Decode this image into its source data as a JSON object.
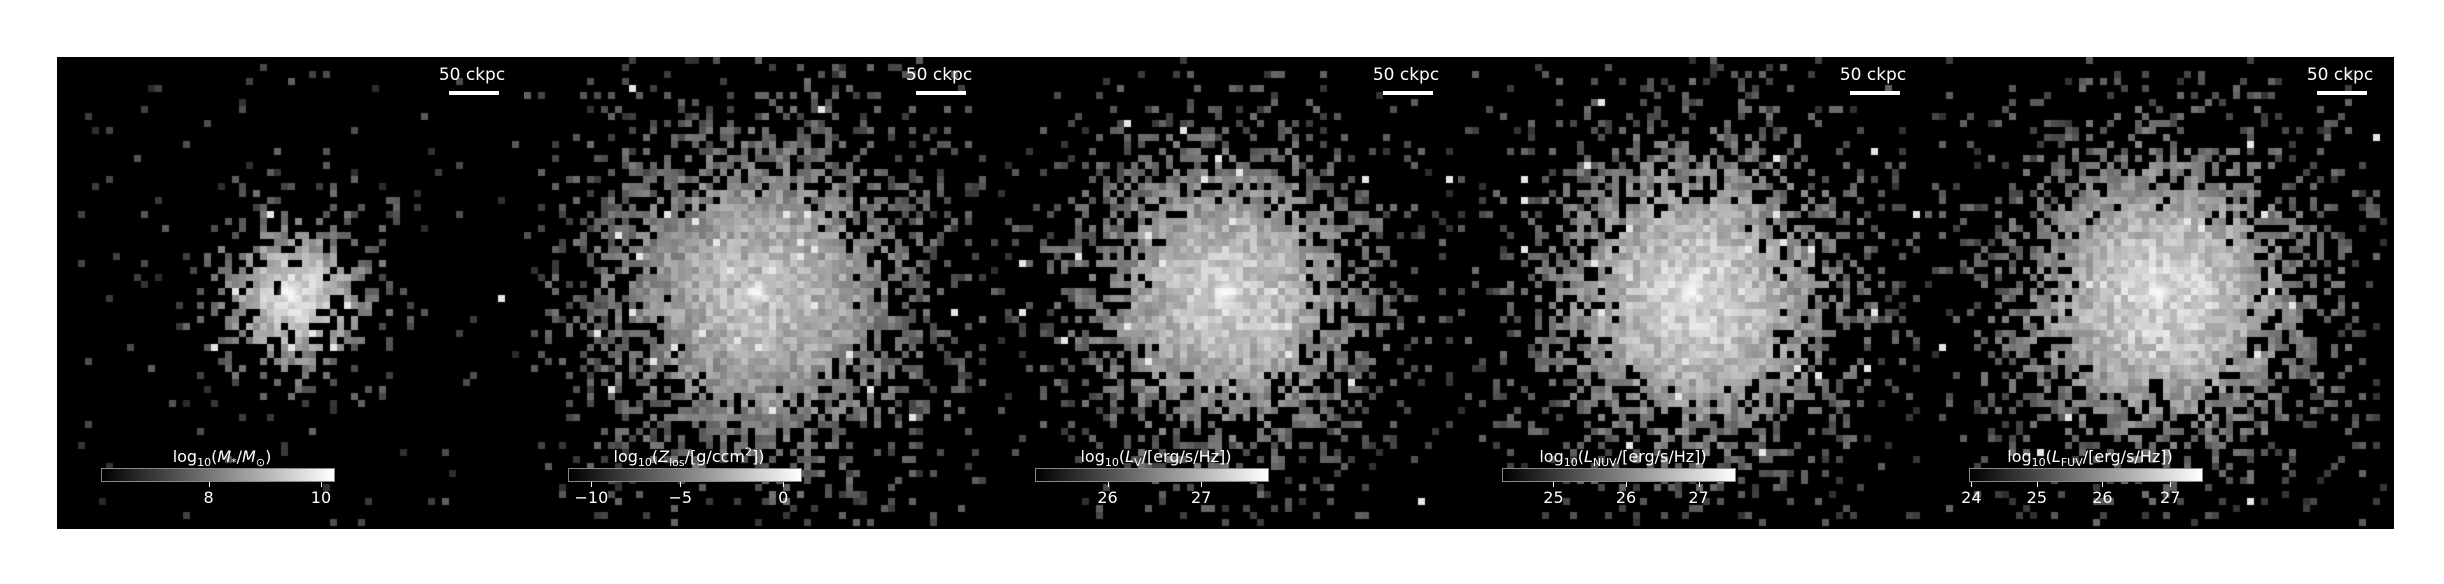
{
  "figure": {
    "panels": [
      {
        "scale_label": "50 ckpc",
        "colorbar_label_html": "log<sub>10</sub>(<i>M</i><sub>*</sub>/<i>M</i><sub>⊙</sub>)",
        "ticks": [
          {
            "label": "8",
            "frac": 0.46
          },
          {
            "label": "10",
            "frac": 0.94
          }
        ],
        "center": {
          "fx": 0.5,
          "fy": 0.5
        },
        "spread": 0.11,
        "density": 0.7,
        "core_brightness": 0.9
      },
      {
        "scale_label": "50 ckpc",
        "colorbar_label_html": "log<sub>10</sub>(<i>Z</i><sub>los</sub>/[g/ccm<sup>2</sup>])",
        "ticks": [
          {
            "label": "−10",
            "frac": 0.1
          },
          {
            "label": "−5",
            "frac": 0.48
          },
          {
            "label": "0",
            "frac": 0.92
          }
        ],
        "center": {
          "fx": 0.5,
          "fy": 0.5
        },
        "spread": 0.22,
        "density": 1.0,
        "core_brightness": 0.75
      },
      {
        "scale_label": "50 ckpc",
        "colorbar_label_html": "log<sub>10</sub>(<i>L</i><sub>V</sub>/[erg/s/Hz])",
        "ticks": [
          {
            "label": "26",
            "frac": 0.31
          },
          {
            "label": "27",
            "frac": 0.71
          }
        ],
        "center": {
          "fx": 0.5,
          "fy": 0.5
        },
        "spread": 0.2,
        "density": 0.95,
        "core_brightness": 0.85
      },
      {
        "scale_label": "50 ckpc",
        "colorbar_label_html": "log<sub>10</sub>(<i>L</i><sub>NUV</sub>/[erg/s/Hz])",
        "ticks": [
          {
            "label": "25",
            "frac": 0.22
          },
          {
            "label": "26",
            "frac": 0.53
          },
          {
            "label": "27",
            "frac": 0.84
          }
        ],
        "center": {
          "fx": 0.5,
          "fy": 0.5
        },
        "spread": 0.21,
        "density": 0.95,
        "core_brightness": 0.9
      },
      {
        "scale_label": "50 ckpc",
        "colorbar_label_html": "log<sub>10</sub>(<i>L</i><sub>FUV</sub>/[erg/s/Hz])",
        "ticks": [
          {
            "label": "24",
            "frac": 0.01
          },
          {
            "label": "25",
            "frac": 0.29
          },
          {
            "label": "26",
            "frac": 0.57
          },
          {
            "label": "27",
            "frac": 0.86
          }
        ],
        "center": {
          "fx": 0.5,
          "fy": 0.5
        },
        "spread": 0.21,
        "density": 0.95,
        "core_brightness": 0.9
      }
    ]
  }
}
